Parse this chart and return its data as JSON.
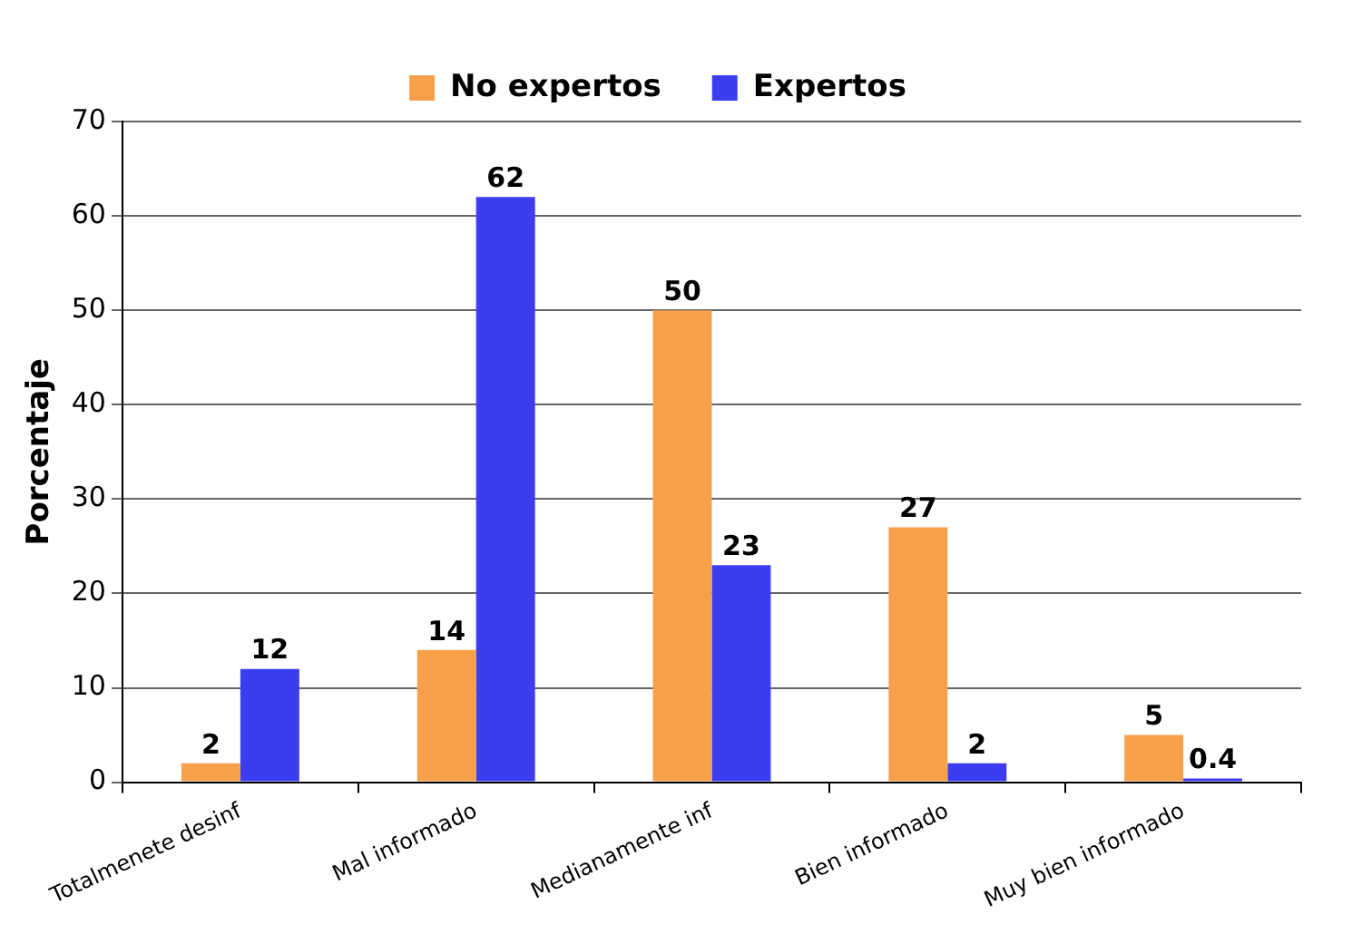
{
  "chart_data": {
    "type": "bar",
    "ylabel": "Porcentaje",
    "categories": [
      "Totalmenete desinf",
      "Mal informado",
      "Medianamente inf",
      "Bien informado",
      "Muy bien informado"
    ],
    "series": [
      {
        "name": "No expertos",
        "color": "#f7a04a",
        "values": [
          2,
          14,
          50,
          27,
          5
        ]
      },
      {
        "name": "Expertos",
        "color": "#3c3cf0",
        "values": [
          12,
          62,
          23,
          2,
          0.4
        ]
      }
    ],
    "ylim": [
      0,
      70
    ],
    "yticks": [
      0,
      10,
      20,
      30,
      40,
      50,
      60,
      70
    ],
    "grid": "y",
    "legend": "top",
    "data_labels": true
  }
}
